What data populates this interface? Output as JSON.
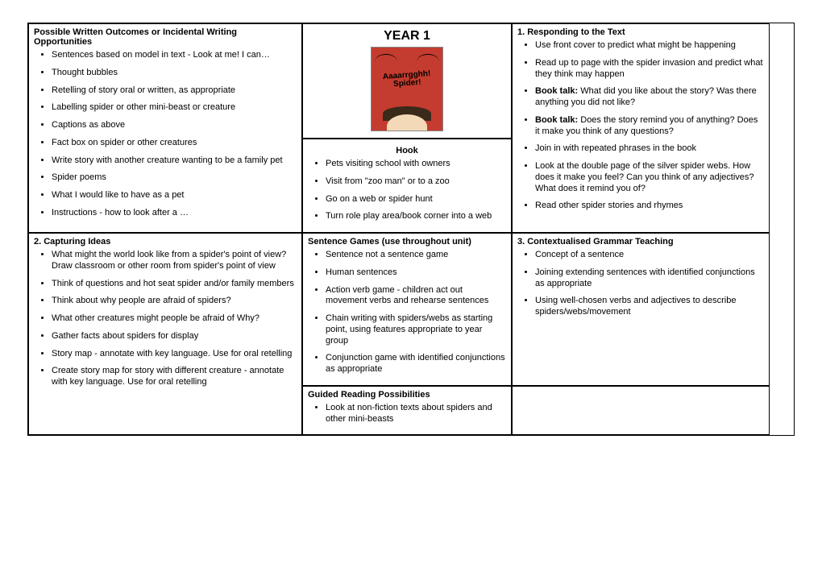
{
  "col1": {
    "top": {
      "title": "Possible Written Outcomes or Incidental Writing Opportunities",
      "items": [
        "Sentences based on model in text - Look at me! I can…",
        "Thought bubbles",
        "Retelling of story oral or written, as appropriate",
        "Labelling spider or other mini-beast or creature",
        "Captions as above",
        "Fact box on spider or other creatures",
        "Write story with another creature wanting to be a family pet",
        "Spider poems",
        "What I would like to have as a pet",
        "Instructions - how to look after a …"
      ]
    },
    "bottom": {
      "title": "2. Capturing Ideas",
      "items": [
        "What might the world look like from a spider's point of view? Draw classroom or other room from spider's point of view",
        "Think of questions and hot seat spider and/or family members",
        "Think about why people are afraid of spiders?",
        "What other creatures might people be afraid of Why?",
        "Gather facts about spiders for display",
        "Story map - annotate with key language. Use for oral retelling",
        "Create story map for story with different creature - annotate with key language. Use for oral retelling"
      ]
    }
  },
  "col2": {
    "year": "YEAR 1",
    "book_line1": "Aaaarrgghh!",
    "book_line2": "Spider!",
    "hook_title": "Hook",
    "hook_items": [
      "Pets visiting school with owners",
      "Visit from \"zoo man\" or to a zoo",
      "Go on a web or spider hunt",
      "Turn role play area/book corner into a web"
    ],
    "sent_title": "Sentence Games (use throughout unit)",
    "sent_items": [
      "Sentence not a sentence game",
      "Human sentences",
      " Action verb game - children act out movement verbs and rehearse sentences",
      "Chain writing with spiders/webs as starting point, using features appropriate to year group",
      "Conjunction game with identified conjunctions as appropriate"
    ],
    "guided_title": "Guided Reading Possibilities",
    "guided_items": [
      "Look at non-fiction texts about spiders and other mini-beasts"
    ]
  },
  "col3": {
    "top": {
      "title": "1. Responding to the Text",
      "items": [
        {
          "pre": "",
          "bold": "",
          "text": "Use front cover  to predict what might be happening"
        },
        {
          "pre": "",
          "bold": "",
          "text": "Read up to page with the spider invasion and predict what they think may happen"
        },
        {
          "pre": "",
          "bold": "Book talk:",
          "text": " What did you like about the story? Was there anything you did not like?"
        },
        {
          "pre": "",
          "bold": "Book talk:",
          "text": " Does the story remind you of anything? Does it make you think of any questions?"
        },
        {
          "pre": "",
          "bold": "",
          "text": "Join in with repeated phrases in the book"
        },
        {
          "pre": "",
          "bold": "",
          "text": "Look at the double page of the silver spider webs. How does it make you feel? Can you think of any adjectives? What does it remind you of?"
        },
        {
          "pre": "",
          "bold": "",
          "text": "Read other spider stories and rhymes"
        }
      ]
    },
    "bottom": {
      "title": "3. Contextualised Grammar Teaching",
      "items": [
        "Concept of a sentence",
        "Joining extending sentences with identified conjunctions as appropriate",
        "Using well-chosen verbs and adjectives to describe spiders/webs/movement"
      ]
    }
  }
}
